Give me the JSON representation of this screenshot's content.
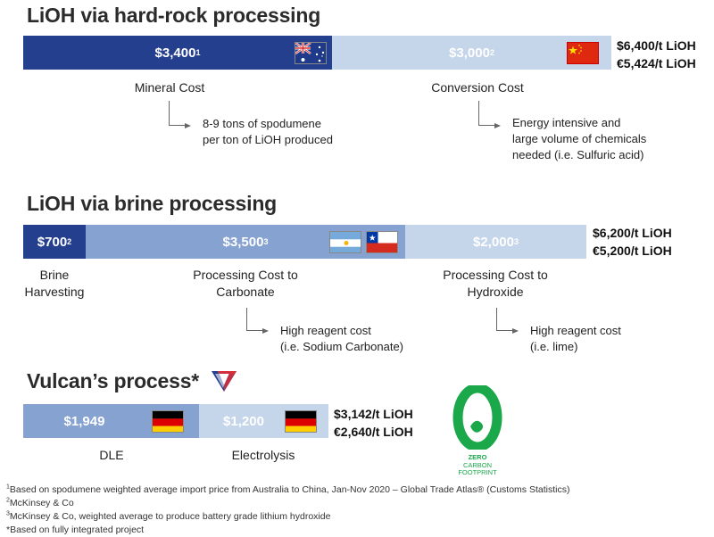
{
  "hardrock": {
    "title": "LiOH via hard-rock processing",
    "bar1_value": "$3,400",
    "bar1_ref": "1",
    "bar2_value": "$3,000",
    "bar2_ref": "2",
    "total_usd": "$6,400/t LiOH",
    "total_eur": "€5,424/t LiOH",
    "label1": "Mineral Cost",
    "label2": "Conversion Cost",
    "note1_line1": "8-9 tons of spodumene",
    "note1_line2": "per ton of LiOH produced",
    "note2_line1": "Energy intensive and",
    "note2_line2": "large volume of chemicals",
    "note2_line3": "needed (i.e. Sulfuric acid)"
  },
  "brine": {
    "title": "LiOH via brine processing",
    "bar1_value": "$700",
    "bar1_ref": "2",
    "bar2_value": "$3,500",
    "bar2_ref": "3",
    "bar3_value": "$2,000",
    "bar3_ref": "3",
    "total_usd": "$6,200/t LiOH",
    "total_eur": "€5,200/t LiOH",
    "label1_line1": "Brine",
    "label1_line2": "Harvesting",
    "label2_line1": "Processing Cost to",
    "label2_line2": "Carbonate",
    "label3_line1": "Processing Cost to",
    "label3_line2": "Hydroxide",
    "note1_line1": "High reagent cost",
    "note1_line2": "(i.e. Sodium Carbonate)",
    "note2_line1": "High reagent cost",
    "note2_line2": "(i.e. lime)"
  },
  "vulcan": {
    "title": "Vulcan’s process*",
    "bar1_value": "$1,949",
    "bar2_value": "$1,200",
    "total_usd": "$3,142/t LiOH",
    "total_eur": "€2,640/t LiOH",
    "label1": "DLE",
    "label2": "Electrolysis",
    "badge_line1": "ZERO",
    "badge_line2": "CARBON",
    "badge_line3": "FOOTPRINT"
  },
  "footnotes": {
    "f1_mark": "1",
    "f1_text": "Based on spodumene weighted average import price from Australia to China, Jan-Nov 2020 – Global Trade Atlas® (Customs Statistics)",
    "f2_mark": "2",
    "f2_text": "McKinsey & Co",
    "f3_mark": "3",
    "f3_text": "McKinsey & Co, weighted average to produce battery grade lithium hydroxide",
    "f4_text": "*Based on fully integrated project"
  },
  "colors": {
    "bar_dark": "#253f8f",
    "bar_mid": "#86a2d0",
    "bar_light": "#c5d5ea",
    "badge_green": "#1aa84a",
    "vulcan_red": "#d32f3a",
    "vulcan_blue": "#253f8f"
  },
  "icons": [
    "australia-flag-icon",
    "china-flag-icon",
    "argentina-flag-icon",
    "chile-flag-icon",
    "germany-flag-icon",
    "vulcan-logo-icon",
    "zero-carbon-footprint-icon"
  ]
}
